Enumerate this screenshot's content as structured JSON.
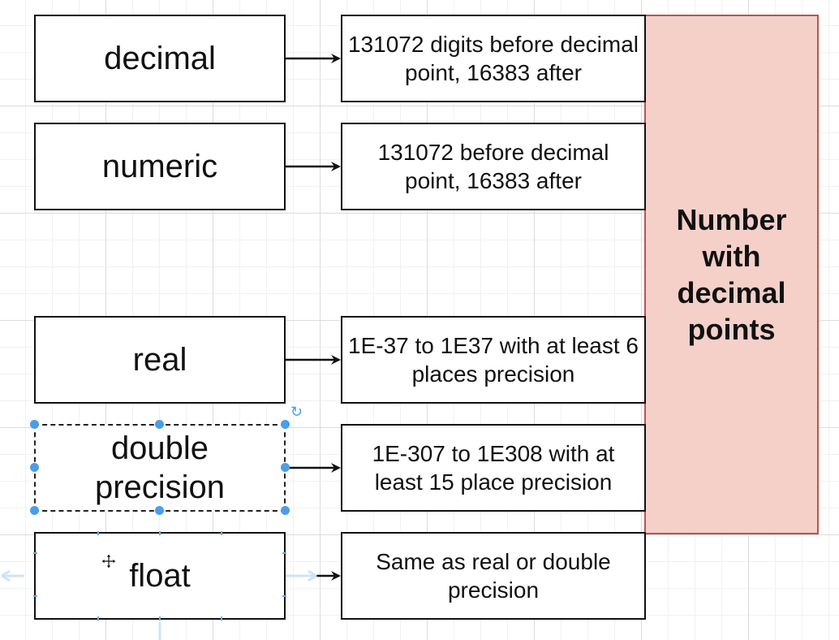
{
  "diagram": {
    "rows": [
      {
        "type": "decimal",
        "description": "131072 digits before decimal point, 16383 after"
      },
      {
        "type": "numeric",
        "description": "131072 before decimal point, 16383 after"
      },
      {
        "type": "real",
        "description": "1E-37 to 1E37 with at least 6 places precision"
      },
      {
        "type": "double precision",
        "description": "1E-307 to 1E308 with at least 15 place precision"
      },
      {
        "type": "float",
        "description": "Same as real or double precision"
      }
    ],
    "group_label": "Number with decimal points"
  },
  "colors": {
    "label_fill": "#f4d0c9",
    "label_border": "#b85450",
    "selection_handle": "#4a9ee8"
  },
  "icons": [
    "arrow-right-icon",
    "rotate-icon",
    "move-cursor-icon"
  ]
}
